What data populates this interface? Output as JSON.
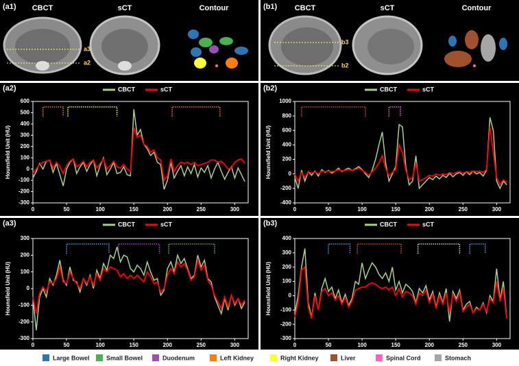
{
  "panels": [
    {
      "label": "(a1)",
      "images": [
        "CBCT",
        "sCT",
        "Contour"
      ],
      "lines": [
        "a3",
        "a2"
      ]
    },
    {
      "label": "(b1)",
      "images": [
        "CBCT",
        "sCT",
        "Contour"
      ],
      "lines": [
        "b3",
        "b2"
      ]
    }
  ],
  "chart_data": [
    {
      "type": "line",
      "panel": "(a2)",
      "ylabel": "Hounsfield Unit (HU)",
      "x": [
        0,
        5,
        10,
        15,
        20,
        25,
        30,
        35,
        40,
        45,
        50,
        55,
        60,
        65,
        70,
        75,
        80,
        85,
        90,
        95,
        100,
        105,
        110,
        115,
        120,
        125,
        130,
        135,
        140,
        145,
        150,
        155,
        160,
        165,
        170,
        175,
        180,
        185,
        190,
        195,
        200,
        205,
        210,
        215,
        220,
        225,
        230,
        235,
        240,
        245,
        250,
        255,
        260,
        265,
        270,
        275,
        280,
        285,
        290,
        295,
        300,
        305,
        310,
        315
      ],
      "xlim": [
        0,
        320
      ],
      "xticks": [
        0,
        50,
        100,
        150,
        200,
        250,
        300
      ],
      "ylim": [
        -300,
        600
      ],
      "yticks": [
        -300,
        -200,
        -100,
        0,
        100,
        200,
        300,
        400,
        500,
        600
      ],
      "series": [
        {
          "name": "CBCT",
          "color": "#a9d18e",
          "values": [
            -80,
            -20,
            50,
            0,
            70,
            80,
            -30,
            50,
            -50,
            -150,
            0,
            60,
            90,
            -40,
            20,
            60,
            -20,
            40,
            80,
            -60,
            30,
            100,
            -50,
            0,
            60,
            -40,
            -30,
            20,
            -50,
            -60,
            530,
            300,
            350,
            220,
            180,
            120,
            150,
            60,
            40,
            -180,
            -100,
            60,
            -80,
            -20,
            30,
            -60,
            20,
            -40,
            40,
            -70,
            10,
            -30,
            30,
            -80,
            0,
            60,
            -20,
            -90,
            -30,
            20,
            -80,
            10,
            -50,
            -110
          ]
        },
        {
          "name": "sCT",
          "color": "#ff0000",
          "values": [
            -40,
            0,
            40,
            60,
            70,
            80,
            10,
            60,
            20,
            -40,
            30,
            70,
            90,
            20,
            40,
            70,
            20,
            60,
            80,
            10,
            50,
            90,
            0,
            30,
            70,
            20,
            10,
            40,
            0,
            -20,
            370,
            280,
            300,
            220,
            200,
            150,
            170,
            100,
            80,
            -100,
            -60,
            90,
            -20,
            30,
            60,
            50,
            60,
            40,
            60,
            30,
            40,
            50,
            60,
            80,
            80,
            60,
            70,
            40,
            0,
            10,
            60,
            80,
            90,
            50
          ]
        }
      ],
      "regions": [
        {
          "color": "#ed7d31",
          "start": 15,
          "end": 45
        },
        {
          "color": "#ffff00",
          "start": 52,
          "end": 125
        },
        {
          "color": "#ed7d31",
          "start": 207,
          "end": 278
        }
      ]
    },
    {
      "type": "line",
      "panel": "(b2)",
      "ylabel": "Hounsfield Unit (HU)",
      "x": [
        0,
        5,
        10,
        15,
        20,
        25,
        30,
        35,
        40,
        45,
        50,
        55,
        60,
        65,
        70,
        75,
        80,
        85,
        90,
        95,
        100,
        105,
        110,
        115,
        120,
        125,
        130,
        135,
        140,
        145,
        150,
        155,
        160,
        165,
        170,
        175,
        180,
        185,
        190,
        195,
        200,
        205,
        210,
        215,
        220,
        225,
        230,
        235,
        240,
        245,
        250,
        255,
        260,
        265,
        270,
        275,
        280,
        285,
        290,
        295,
        300,
        305,
        310,
        315
      ],
      "xlim": [
        0,
        320
      ],
      "xticks": [
        0,
        50,
        100,
        150,
        200,
        250,
        300
      ],
      "ylim": [
        -400,
        1000
      ],
      "yticks": [
        -400,
        -200,
        0,
        200,
        400,
        600,
        800,
        1000
      ],
      "series": [
        {
          "name": "CBCT",
          "color": "#a9d18e",
          "values": [
            -50,
            -200,
            50,
            -100,
            30,
            -20,
            40,
            -30,
            60,
            20,
            50,
            10,
            40,
            80,
            30,
            60,
            80,
            50,
            70,
            100,
            60,
            0,
            -50,
            50,
            200,
            400,
            580,
            150,
            -100,
            0,
            100,
            680,
            650,
            100,
            -150,
            -100,
            250,
            -200,
            -150,
            -100,
            -50,
            -80,
            -30,
            -70,
            -20,
            -50,
            10,
            -40,
            0,
            20,
            -20,
            30,
            -10,
            40,
            0,
            20,
            -30,
            50,
            780,
            600,
            -100,
            -200,
            -100,
            -150
          ]
        },
        {
          "name": "sCT",
          "color": "#ff0000",
          "values": [
            0,
            -100,
            20,
            -50,
            30,
            10,
            30,
            0,
            40,
            30,
            40,
            30,
            40,
            60,
            40,
            50,
            60,
            50,
            60,
            80,
            50,
            20,
            -20,
            30,
            80,
            150,
            250,
            80,
            -30,
            20,
            60,
            400,
            300,
            50,
            -80,
            -50,
            150,
            -100,
            -80,
            -50,
            -20,
            -30,
            0,
            -20,
            0,
            -10,
            20,
            0,
            20,
            30,
            10,
            30,
            20,
            40,
            30,
            40,
            20,
            60,
            650,
            300,
            -50,
            -150,
            -80,
            -120
          ]
        }
      ],
      "regions": [
        {
          "color": "#c55a11",
          "start": 10,
          "end": 105
        },
        {
          "color": "#ff66cc",
          "start": 140,
          "end": 157
        }
      ]
    },
    {
      "type": "line",
      "panel": "(a3)",
      "ylabel": "Hounsfield Unit (HU)",
      "x": [
        0,
        5,
        10,
        15,
        20,
        25,
        30,
        35,
        40,
        45,
        50,
        55,
        60,
        65,
        70,
        75,
        80,
        85,
        90,
        95,
        100,
        105,
        110,
        115,
        120,
        125,
        130,
        135,
        140,
        145,
        150,
        155,
        160,
        165,
        170,
        175,
        180,
        185,
        190,
        195,
        200,
        205,
        210,
        215,
        220,
        225,
        230,
        235,
        240,
        245,
        250,
        255,
        260,
        265,
        270,
        275,
        280,
        285,
        290,
        295,
        300,
        305,
        310,
        315
      ],
      "xlim": [
        0,
        320
      ],
      "xticks": [
        0,
        50,
        100,
        150,
        200,
        250,
        300
      ],
      "ylim": [
        -300,
        300
      ],
      "yticks": [
        -300,
        -200,
        -100,
        0,
        100,
        200,
        300
      ],
      "series": [
        {
          "name": "CBCT",
          "color": "#a9d18e",
          "values": [
            -60,
            -250,
            -50,
            0,
            -50,
            60,
            20,
            80,
            170,
            50,
            20,
            130,
            50,
            40,
            -20,
            60,
            20,
            80,
            0,
            110,
            60,
            150,
            110,
            200,
            180,
            250,
            160,
            200,
            190,
            120,
            100,
            140,
            120,
            80,
            160,
            100,
            50,
            60,
            -40,
            -10,
            120,
            160,
            100,
            200,
            150,
            180,
            120,
            60,
            80,
            200,
            130,
            170,
            60,
            40,
            -50,
            -100,
            -150,
            -60,
            -130,
            -40,
            -100,
            -60,
            -120,
            -80
          ]
        },
        {
          "name": "sCT",
          "color": "#ff0000",
          "values": [
            -50,
            -150,
            -30,
            10,
            -20,
            40,
            30,
            60,
            130,
            40,
            30,
            100,
            60,
            30,
            0,
            60,
            30,
            70,
            20,
            90,
            50,
            120,
            100,
            130,
            120,
            110,
            70,
            90,
            60,
            80,
            60,
            80,
            60,
            40,
            100,
            70,
            30,
            40,
            -20,
            0,
            80,
            120,
            90,
            160,
            130,
            150,
            110,
            50,
            70,
            170,
            110,
            140,
            50,
            20,
            -40,
            -80,
            -120,
            -50,
            -110,
            -40,
            -90,
            -60,
            -100,
            -70
          ]
        }
      ],
      "regions": [
        {
          "color": "#5b9bd5",
          "start": 50,
          "end": 113
        },
        {
          "color": "#b050c8",
          "start": 127,
          "end": 188
        },
        {
          "color": "#70ad47",
          "start": 202,
          "end": 270
        }
      ]
    },
    {
      "type": "line",
      "panel": "(b3)",
      "ylabel": "Hounsfield Unit (HU)",
      "x": [
        0,
        5,
        10,
        15,
        20,
        25,
        30,
        35,
        40,
        45,
        50,
        55,
        60,
        65,
        70,
        75,
        80,
        85,
        90,
        95,
        100,
        105,
        110,
        115,
        120,
        125,
        130,
        135,
        140,
        145,
        150,
        155,
        160,
        165,
        170,
        175,
        180,
        185,
        190,
        195,
        200,
        205,
        210,
        215,
        220,
        225,
        230,
        235,
        240,
        245,
        250,
        255,
        260,
        265,
        270,
        275,
        280,
        285,
        290,
        295,
        300,
        305,
        310,
        315
      ],
      "xlim": [
        0,
        320
      ],
      "xticks": [
        0,
        50,
        100,
        150,
        200,
        250,
        300
      ],
      "ylim": [
        -300,
        400
      ],
      "yticks": [
        -300,
        -200,
        -100,
        0,
        100,
        200,
        300,
        400
      ],
      "series": [
        {
          "name": "CBCT",
          "color": "#a9d18e",
          "values": [
            -120,
            0,
            200,
            330,
            -50,
            -150,
            20,
            -100,
            50,
            120,
            30,
            60,
            -20,
            40,
            -50,
            10,
            -70,
            -20,
            100,
            80,
            230,
            120,
            180,
            230,
            200,
            150,
            120,
            160,
            100,
            200,
            40,
            100,
            20,
            80,
            60,
            30,
            -50,
            50,
            20,
            70,
            -30,
            30,
            -80,
            20,
            -50,
            50,
            -180,
            30,
            -20,
            40,
            -100,
            -60,
            -40,
            -120,
            -80,
            -100,
            -50,
            -120,
            0,
            -40,
            190,
            -30,
            100,
            -150
          ]
        },
        {
          "name": "sCT",
          "color": "#ff0000",
          "values": [
            -150,
            -50,
            180,
            200,
            -80,
            -160,
            0,
            -100,
            30,
            50,
            0,
            20,
            -30,
            0,
            -60,
            -10,
            -80,
            -40,
            40,
            50,
            60,
            60,
            80,
            90,
            80,
            60,
            50,
            60,
            40,
            60,
            0,
            50,
            -10,
            30,
            20,
            0,
            -60,
            20,
            0,
            40,
            -50,
            10,
            -90,
            0,
            -60,
            20,
            -120,
            10,
            -40,
            20,
            -110,
            -80,
            -60,
            -120,
            -90,
            -100,
            -60,
            -110,
            -20,
            -50,
            100,
            -40,
            50,
            -160
          ]
        }
      ],
      "regions": [
        {
          "color": "#5b9bd5",
          "start": 50,
          "end": 82
        },
        {
          "color": "#c55a11",
          "start": 93,
          "end": 158
        },
        {
          "color": "#d9d9d9",
          "start": 183,
          "end": 245
        },
        {
          "color": "#5b9bd5",
          "start": 260,
          "end": 283
        }
      ]
    }
  ],
  "legend": [
    {
      "name": "Large Bowel",
      "color": "#2e75b6"
    },
    {
      "name": "Small Bowel",
      "color": "#4caf50"
    },
    {
      "name": "Duodenum",
      "color": "#9b4fb5"
    },
    {
      "name": "Left Kidney",
      "color": "#ff7f0e"
    },
    {
      "name": "Right Kidney",
      "color": "#ffff33"
    },
    {
      "name": "Liver",
      "color": "#a0522d"
    },
    {
      "name": "Spinal Cord",
      "color": "#ff66bb"
    },
    {
      "name": "Stomach",
      "color": "#a6a6a6"
    }
  ]
}
